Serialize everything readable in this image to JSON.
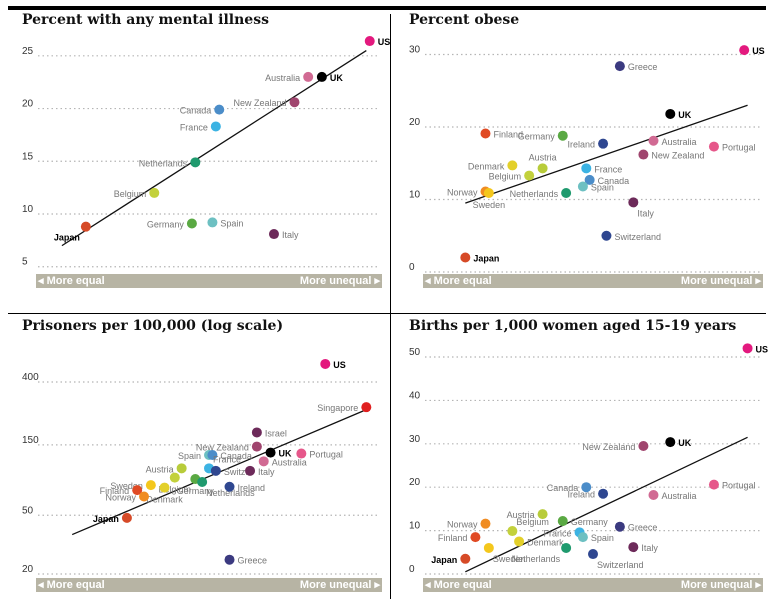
{
  "axis_footer": {
    "left": "◂ More equal",
    "right": "More unequal ▸"
  },
  "chart_data": [
    {
      "type": "scatter",
      "title": "Percent with any mental illness",
      "scale": "linear",
      "ylim": [
        4.5,
        26.5
      ],
      "yticks": [
        5,
        10,
        15,
        20,
        25
      ],
      "grid": true,
      "trend": [
        [
          0.07,
          7.0
        ],
        [
          0.96,
          25.5
        ]
      ],
      "points": [
        {
          "label": "US",
          "x": 0.97,
          "y": 26.4,
          "color": "#e3197e",
          "bold": true,
          "anchor": "right"
        },
        {
          "label": "Australia",
          "x": 0.79,
          "y": 23.0,
          "color": "#d16a93",
          "anchor": "left"
        },
        {
          "label": "UK",
          "x": 0.83,
          "y": 23.0,
          "color": "#000000",
          "bold": true,
          "anchor": "right"
        },
        {
          "label": "New Zealand",
          "x": 0.75,
          "y": 20.6,
          "color": "#a0456e",
          "anchor": "left"
        },
        {
          "label": "Canada",
          "x": 0.53,
          "y": 19.9,
          "color": "#4b8dc9",
          "anchor": "left"
        },
        {
          "label": "France",
          "x": 0.52,
          "y": 18.3,
          "color": "#3cb3e3",
          "anchor": "left"
        },
        {
          "label": "Netherlands",
          "x": 0.46,
          "y": 14.9,
          "color": "#1f9a6e",
          "anchor": "left"
        },
        {
          "label": "Belgium",
          "x": 0.34,
          "y": 12.0,
          "color": "#c3d13c",
          "anchor": "left"
        },
        {
          "label": "Germany",
          "x": 0.45,
          "y": 9.1,
          "color": "#5aa943",
          "anchor": "left"
        },
        {
          "label": "Spain",
          "x": 0.51,
          "y": 9.2,
          "color": "#6dc0c2",
          "anchor": "right"
        },
        {
          "label": "Italy",
          "x": 0.69,
          "y": 8.1,
          "color": "#6d2a5a",
          "anchor": "right"
        },
        {
          "label": "Japan",
          "x": 0.14,
          "y": 8.8,
          "color": "#d64a27",
          "bold": true,
          "anchor": "below-left"
        }
      ]
    },
    {
      "type": "scatter",
      "title": "Percent obese",
      "scale": "linear",
      "ylim": [
        0,
        32
      ],
      "yticks": [
        0,
        10,
        20,
        30
      ],
      "grid": true,
      "trend": [
        [
          0.12,
          9.5
        ],
        [
          0.96,
          23.0
        ]
      ],
      "points": [
        {
          "label": "US",
          "x": 0.95,
          "y": 30.6,
          "color": "#e3197e",
          "bold": true,
          "anchor": "right"
        },
        {
          "label": "Greece",
          "x": 0.58,
          "y": 28.4,
          "color": "#3b3a80",
          "anchor": "right"
        },
        {
          "label": "UK",
          "x": 0.73,
          "y": 21.8,
          "color": "#000000",
          "bold": true,
          "anchor": "right"
        },
        {
          "label": "Finland",
          "x": 0.18,
          "y": 19.1,
          "color": "#e04a24",
          "anchor": "right"
        },
        {
          "label": "Germany",
          "x": 0.41,
          "y": 18.8,
          "color": "#5aa943",
          "anchor": "left"
        },
        {
          "label": "Ireland",
          "x": 0.53,
          "y": 17.7,
          "color": "#2f4790",
          "anchor": "left"
        },
        {
          "label": "Australia",
          "x": 0.68,
          "y": 18.1,
          "color": "#d16a93",
          "anchor": "right"
        },
        {
          "label": "Portugal",
          "x": 0.86,
          "y": 17.3,
          "color": "#e6578a",
          "anchor": "right"
        },
        {
          "label": "New Zealand",
          "x": 0.65,
          "y": 16.2,
          "color": "#a0456e",
          "anchor": "right"
        },
        {
          "label": "Denmark",
          "x": 0.26,
          "y": 14.7,
          "color": "#e3d02a",
          "anchor": "left"
        },
        {
          "label": "Austria",
          "x": 0.35,
          "y": 14.3,
          "color": "#b8cc3a",
          "anchor": "above"
        },
        {
          "label": "France",
          "x": 0.48,
          "y": 14.3,
          "color": "#3cb3e3",
          "anchor": "right"
        },
        {
          "label": "Belgium",
          "x": 0.31,
          "y": 13.3,
          "color": "#c3d13c",
          "anchor": "left"
        },
        {
          "label": "Canada",
          "x": 0.49,
          "y": 12.7,
          "color": "#4b8dc9",
          "anchor": "right"
        },
        {
          "label": "Spain",
          "x": 0.47,
          "y": 11.8,
          "color": "#6dc0c2",
          "anchor": "right"
        },
        {
          "label": "Netherlands",
          "x": 0.42,
          "y": 10.9,
          "color": "#1f9a6e",
          "anchor": "left"
        },
        {
          "label": "Norway",
          "x": 0.18,
          "y": 11.1,
          "color": "#f08c22",
          "anchor": "left"
        },
        {
          "label": "Sweden",
          "x": 0.19,
          "y": 10.9,
          "color": "#f4c71c",
          "anchor": "below"
        },
        {
          "label": "Italy",
          "x": 0.62,
          "y": 9.6,
          "color": "#6d2a5a",
          "anchor": "below-right"
        },
        {
          "label": "Switzerland",
          "x": 0.54,
          "y": 5.0,
          "color": "#2f4790",
          "anchor": "right"
        },
        {
          "label": "Japan",
          "x": 0.12,
          "y": 2.0,
          "color": "#d64a27",
          "bold": true,
          "anchor": "right"
        }
      ]
    },
    {
      "type": "scatter",
      "title": "Prisoners per 100,000 (log scale)",
      "scale": "log",
      "ylim": [
        20,
        600
      ],
      "yticks": [
        20,
        50,
        150,
        400
      ],
      "grid": true,
      "trend": [
        [
          0.1,
          37.0
        ],
        [
          0.96,
          260.0
        ]
      ],
      "points": [
        {
          "label": "US",
          "x": 0.84,
          "y": 530,
          "color": "#e3197e",
          "bold": true,
          "anchor": "right"
        },
        {
          "label": "Singapore",
          "x": 0.96,
          "y": 270,
          "color": "#e02020",
          "anchor": "left"
        },
        {
          "label": "Israel",
          "x": 0.64,
          "y": 182,
          "color": "#6d2a5a",
          "anchor": "right"
        },
        {
          "label": "New Zealand",
          "x": 0.64,
          "y": 146,
          "color": "#a0456e",
          "anchor": "left"
        },
        {
          "label": "UK",
          "x": 0.68,
          "y": 133,
          "color": "#000000",
          "bold": true,
          "anchor": "right"
        },
        {
          "label": "Portugal",
          "x": 0.77,
          "y": 131,
          "color": "#e6578a",
          "anchor": "right"
        },
        {
          "label": "Spain",
          "x": 0.5,
          "y": 128,
          "color": "#6dc0c2",
          "anchor": "left"
        },
        {
          "label": "Canada",
          "x": 0.51,
          "y": 128,
          "color": "#4b8dc9",
          "anchor": "right"
        },
        {
          "label": "France",
          "x": 0.5,
          "y": 104,
          "color": "#3cb3e3",
          "anchor": "above-right"
        },
        {
          "label": "Australia",
          "x": 0.66,
          "y": 116,
          "color": "#d16a93",
          "anchor": "right"
        },
        {
          "label": "Austria",
          "x": 0.42,
          "y": 104,
          "color": "#b8cc3a",
          "anchor": "left"
        },
        {
          "label": "Switz.",
          "x": 0.52,
          "y": 100,
          "color": "#2f4790",
          "anchor": "right"
        },
        {
          "label": "Germany",
          "x": 0.46,
          "y": 88,
          "color": "#5aa943",
          "anchor": "below"
        },
        {
          "label": "Italy",
          "x": 0.62,
          "y": 100,
          "color": "#6d2a5a",
          "anchor": "right"
        },
        {
          "label": "Belgium",
          "x": 0.4,
          "y": 90,
          "color": "#c3d13c",
          "anchor": "below"
        },
        {
          "label": "Netherlands",
          "x": 0.48,
          "y": 84,
          "color": "#1f9a6e",
          "anchor": "below-right"
        },
        {
          "label": "Sweden",
          "x": 0.33,
          "y": 80,
          "color": "#f4c71c",
          "anchor": "left"
        },
        {
          "label": "Ireland",
          "x": 0.56,
          "y": 78,
          "color": "#2f4790",
          "anchor": "right"
        },
        {
          "label": "Denmark",
          "x": 0.37,
          "y": 77,
          "color": "#e3d02a",
          "anchor": "below"
        },
        {
          "label": "Finland",
          "x": 0.29,
          "y": 74,
          "color": "#e04a24",
          "anchor": "left"
        },
        {
          "label": "Norway",
          "x": 0.31,
          "y": 67,
          "color": "#f08c22",
          "anchor": "left"
        },
        {
          "label": "Japan",
          "x": 0.26,
          "y": 48,
          "color": "#d64a27",
          "bold": true,
          "anchor": "left"
        },
        {
          "label": "Greece",
          "x": 0.56,
          "y": 25,
          "color": "#3b3a80",
          "anchor": "right"
        }
      ]
    },
    {
      "type": "scatter",
      "title": "Births per 1,000 women aged 15-19 years",
      "scale": "linear",
      "ylim": [
        0,
        53
      ],
      "yticks": [
        0,
        10,
        20,
        30,
        40,
        50
      ],
      "grid": true,
      "trend": [
        [
          0.12,
          0.5
        ],
        [
          0.96,
          31.5
        ]
      ],
      "points": [
        {
          "label": "US",
          "x": 0.96,
          "y": 52.0,
          "color": "#e3197e",
          "bold": true,
          "anchor": "right"
        },
        {
          "label": "UK",
          "x": 0.73,
          "y": 30.4,
          "color": "#000000",
          "bold": true,
          "anchor": "right"
        },
        {
          "label": "New Zealand",
          "x": 0.65,
          "y": 29.5,
          "color": "#a0456e",
          "anchor": "left"
        },
        {
          "label": "Portugal",
          "x": 0.86,
          "y": 20.6,
          "color": "#e6578a",
          "anchor": "right"
        },
        {
          "label": "Canada",
          "x": 0.48,
          "y": 20.0,
          "color": "#4b8dc9",
          "anchor": "left"
        },
        {
          "label": "Ireland",
          "x": 0.53,
          "y": 18.5,
          "color": "#2f4790",
          "anchor": "left"
        },
        {
          "label": "Australia",
          "x": 0.68,
          "y": 18.2,
          "color": "#d16a93",
          "anchor": "right"
        },
        {
          "label": "Austria",
          "x": 0.35,
          "y": 13.8,
          "color": "#b8cc3a",
          "anchor": "left"
        },
        {
          "label": "Norway",
          "x": 0.18,
          "y": 11.6,
          "color": "#f08c22",
          "anchor": "left"
        },
        {
          "label": "Germany",
          "x": 0.41,
          "y": 12.2,
          "color": "#5aa943",
          "anchor": "right"
        },
        {
          "label": "Greece",
          "x": 0.58,
          "y": 10.9,
          "color": "#3b3a80",
          "anchor": "right"
        },
        {
          "label": "Belgium",
          "x": 0.26,
          "y": 9.9,
          "color": "#c3d13c",
          "anchor": "above-right"
        },
        {
          "label": "France",
          "x": 0.46,
          "y": 9.6,
          "color": "#3cb3e3",
          "anchor": "left"
        },
        {
          "label": "Finland",
          "x": 0.15,
          "y": 8.5,
          "color": "#e04a24",
          "anchor": "left"
        },
        {
          "label": "Spain",
          "x": 0.47,
          "y": 8.5,
          "color": "#6dc0c2",
          "anchor": "right"
        },
        {
          "label": "Denmark",
          "x": 0.28,
          "y": 7.5,
          "color": "#e3d02a",
          "anchor": "right"
        },
        {
          "label": "Sweden",
          "x": 0.19,
          "y": 6.0,
          "color": "#f4c71c",
          "anchor": "below-right"
        },
        {
          "label": "Netherlands",
          "x": 0.42,
          "y": 6.0,
          "color": "#1f9a6e",
          "anchor": "below-left"
        },
        {
          "label": "Italy",
          "x": 0.62,
          "y": 6.2,
          "color": "#6d2a5a",
          "anchor": "right"
        },
        {
          "label": "Switzerland",
          "x": 0.5,
          "y": 4.6,
          "color": "#2f4790",
          "anchor": "below-right"
        },
        {
          "label": "Japan",
          "x": 0.12,
          "y": 3.5,
          "color": "#d64a27",
          "bold": true,
          "anchor": "left"
        }
      ]
    }
  ]
}
